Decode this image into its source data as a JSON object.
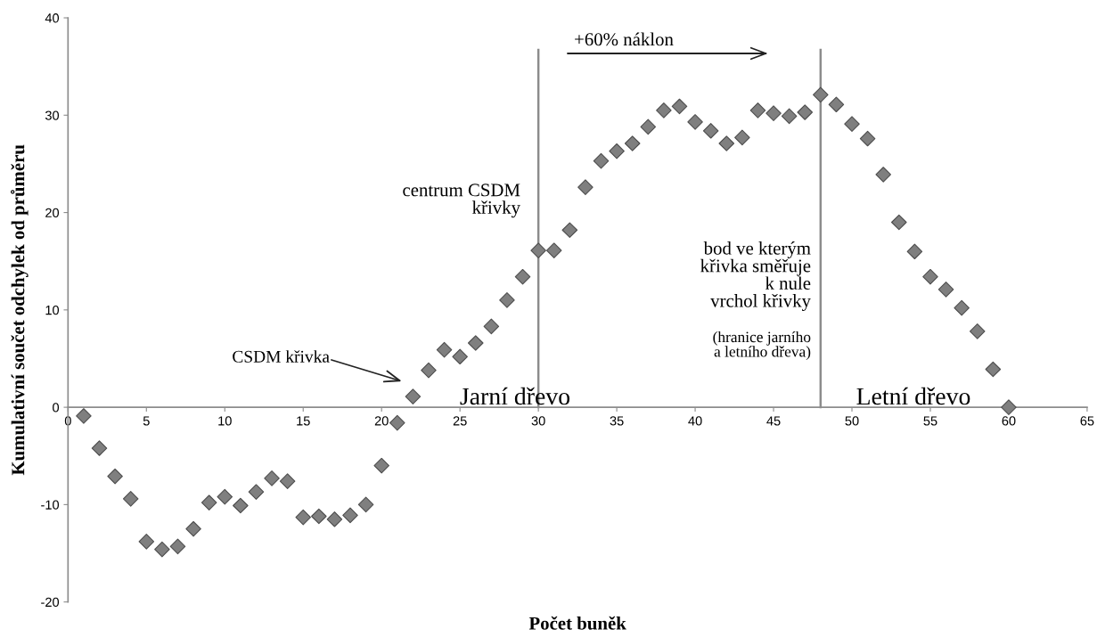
{
  "chart_data": {
    "type": "scatter",
    "xlabel": "Počet buněk",
    "ylabel": "Kumulativní součet odchylek od průměru",
    "x": [
      1,
      2,
      3,
      4,
      5,
      6,
      7,
      8,
      9,
      10,
      11,
      12,
      13,
      14,
      15,
      16,
      17,
      18,
      19,
      20,
      21,
      22,
      23,
      24,
      25,
      26,
      27,
      28,
      29,
      30,
      31,
      32,
      33,
      34,
      35,
      36,
      37,
      38,
      39,
      40,
      41,
      42,
      43,
      44,
      45,
      46,
      47,
      48,
      49,
      50,
      51,
      52,
      53,
      54,
      55,
      56,
      57,
      58,
      59,
      60
    ],
    "series": [
      {
        "color": "#7f7f7f",
        "values": [
          -0.9,
          -4.2,
          -7.1,
          -9.4,
          -13.8,
          -14.6,
          -14.3,
          -12.5,
          -9.8,
          -9.2,
          -10.1,
          -8.7,
          -7.3,
          -7.6,
          -11.3,
          -11.2,
          -11.5,
          -11.1,
          -10.0,
          -6.0,
          -1.6,
          1.1,
          3.8,
          5.9,
          5.2,
          6.6,
          8.3,
          11.0,
          13.4,
          16.1,
          16.1,
          18.2,
          22.6,
          25.3,
          26.3,
          27.1,
          28.8,
          30.5,
          30.9,
          29.3,
          28.4,
          27.1,
          27.7,
          30.5,
          30.2,
          29.9,
          30.3,
          32.1,
          31.1,
          29.1,
          27.6,
          23.9,
          19.0,
          16.0,
          13.4,
          12.1,
          10.2,
          7.8,
          3.9,
          0
        ]
      }
    ],
    "marker": "diamond",
    "grid": false,
    "xlim": [
      0,
      65
    ],
    "xticks": [
      0,
      5,
      10,
      15,
      20,
      25,
      30,
      35,
      40,
      45,
      50,
      55,
      60,
      65
    ],
    "ylim": [
      -20,
      40
    ],
    "yticks": [
      -20,
      -10,
      0,
      10,
      20,
      30,
      40
    ],
    "ref_lines": [
      {
        "axis": "x",
        "value": 30,
        "color": "#8c8c8c"
      },
      {
        "axis": "x",
        "value": 48,
        "color": "#8c8c8c"
      }
    ],
    "annotations": [
      "+60% náklon",
      "centrum CSDM\nkřivky",
      "CSDM křivka",
      "bod ve kterým\nkřivka směřuje\nk nule\nvrchol křivky",
      "(hranice jarního\na letního dřeva)",
      "Jarní dřevo",
      "Letní dřevo"
    ]
  }
}
